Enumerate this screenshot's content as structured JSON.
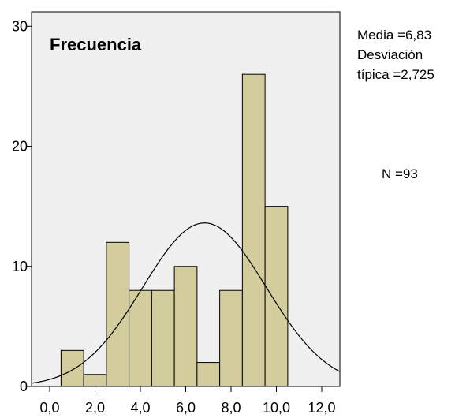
{
  "chart_data": {
    "type": "histogram",
    "title": "Frecuencia",
    "xlabel": "",
    "ylabel": "",
    "bins": [
      {
        "start": 0.5,
        "end": 1.5,
        "count": 3
      },
      {
        "start": 1.5,
        "end": 2.5,
        "count": 1
      },
      {
        "start": 2.5,
        "end": 3.5,
        "count": 12
      },
      {
        "start": 3.5,
        "end": 4.5,
        "count": 8
      },
      {
        "start": 4.5,
        "end": 5.5,
        "count": 8
      },
      {
        "start": 5.5,
        "end": 6.5,
        "count": 10
      },
      {
        "start": 6.5,
        "end": 7.5,
        "count": 2
      },
      {
        "start": 7.5,
        "end": 8.5,
        "count": 8
      },
      {
        "start": 8.5,
        "end": 9.5,
        "count": 26
      },
      {
        "start": 9.5,
        "end": 10.5,
        "count": 15
      }
    ],
    "x_ticks": [
      0,
      2,
      4,
      6,
      8,
      10,
      12
    ],
    "x_tick_labels": [
      "0,0",
      "2,0",
      "4,0",
      "6,0",
      "8,0",
      "10,0",
      "12,0"
    ],
    "y_ticks": [
      0,
      10,
      20,
      30
    ],
    "y_tick_labels": [
      "0",
      "10",
      "20",
      "30"
    ],
    "xlim": [
      -0.8,
      12.8
    ],
    "ylim": [
      0,
      31.2
    ],
    "normal_curve": {
      "mean": 6.83,
      "sd": 2.725,
      "n": 93,
      "bin_width": 1
    },
    "stats": {
      "mean_line": "Media =6,83",
      "sd_line_1": "Desviación",
      "sd_line_2": "típica =2,725",
      "n_line": "N =93"
    },
    "colors": {
      "plot_background": "#f0f0f0",
      "bar_fill": "#d3cc9c",
      "bar_stroke": "#000000",
      "curve": "#000000"
    },
    "grid": false,
    "legend": "none"
  }
}
